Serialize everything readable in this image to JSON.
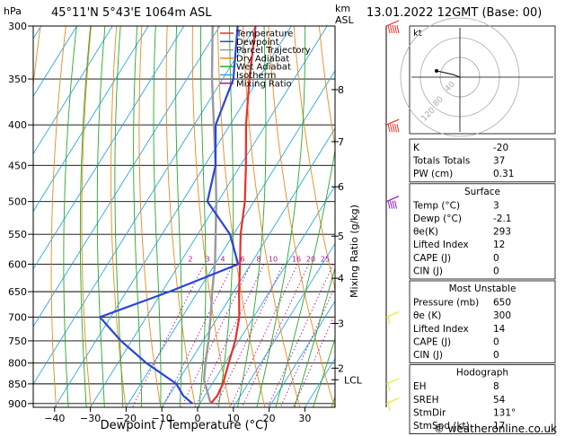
{
  "header": {
    "hpa_label": "hPa",
    "location": "45°11'N  5°43'E  1064m  ASL",
    "km_label": "km",
    "asl_label": "ASL",
    "datetime": "13.01.2022  12GMT  (Base: 00)"
  },
  "axes": {
    "xlabel": "Dewpoint / Temperature (°C)",
    "mixing_ratio_label": "Mixing Ratio (g/kg)",
    "credit": "© weatheronline.co.uk"
  },
  "legend": [
    {
      "label": "Temperature",
      "color": "#e8302a"
    },
    {
      "label": "Dewpoint",
      "color": "#2a45d8"
    },
    {
      "label": "Parcel Trajectory",
      "color": "#999999"
    },
    {
      "label": "Dry Adiabat",
      "color": "#e88a1c"
    },
    {
      "label": "Wet Adiabat",
      "color": "#28a828"
    },
    {
      "label": "Isotherm",
      "color": "#28a8e8"
    },
    {
      "label": "Mixing Ratio",
      "color": "#b0109a"
    }
  ],
  "colors": {
    "temperature": "#e8302a",
    "dewpoint": "#2a45d8",
    "parcel": "#999999",
    "dry_adiabat": "#e88a1c",
    "wet_adiabat": "#28a828",
    "isotherm": "#28a8e8",
    "mixing_ratio": "#b0109a",
    "wind": "#e8e820"
  },
  "chart_data": {
    "type": "skew-t",
    "pressure_levels": [
      300,
      350,
      400,
      450,
      500,
      550,
      600,
      650,
      700,
      750,
      800,
      850,
      900
    ],
    "pressure_labels": [
      "300",
      "350",
      "400",
      "450",
      "500",
      "550",
      "600",
      "650",
      "700",
      "750",
      "800",
      "850",
      "900"
    ],
    "temp_ticks": [
      -40,
      -30,
      -20,
      -10,
      0,
      10,
      20,
      30
    ],
    "temp_tick_labels": [
      "−40",
      "−30",
      "−20",
      "−10",
      "0",
      "10",
      "20",
      "30"
    ],
    "km_ticks": [
      {
        "p": 361,
        "label": "8"
      },
      {
        "p": 420,
        "label": "7"
      },
      {
        "p": 479,
        "label": "6"
      },
      {
        "p": 553,
        "label": "5"
      },
      {
        "p": 625,
        "label": "4"
      },
      {
        "p": 713,
        "label": "3"
      },
      {
        "p": 812,
        "label": "2"
      }
    ],
    "lcl": {
      "p": 840,
      "label": "LCL"
    },
    "mixing_ratio_values": [
      "2",
      "3",
      "4",
      "6",
      "8",
      "10",
      "16",
      "20",
      "25"
    ],
    "temperature": [
      {
        "p": 900,
        "t": 3
      },
      {
        "p": 880,
        "t": 3.5
      },
      {
        "p": 850,
        "t": 3
      },
      {
        "p": 800,
        "t": 1
      },
      {
        "p": 750,
        "t": -1
      },
      {
        "p": 700,
        "t": -4
      },
      {
        "p": 650,
        "t": -8.5
      },
      {
        "p": 600,
        "t": -13
      },
      {
        "p": 550,
        "t": -18
      },
      {
        "p": 500,
        "t": -22.5
      },
      {
        "p": 450,
        "t": -28.5
      },
      {
        "p": 400,
        "t": -35.5
      },
      {
        "p": 350,
        "t": -42.5
      },
      {
        "p": 300,
        "t": -50
      }
    ],
    "dewpoint": [
      {
        "p": 900,
        "t": -2.1
      },
      {
        "p": 880,
        "t": -6
      },
      {
        "p": 850,
        "t": -10
      },
      {
        "p": 800,
        "t": -22
      },
      {
        "p": 750,
        "t": -33
      },
      {
        "p": 700,
        "t": -43
      },
      {
        "p": 650,
        "t": -28
      },
      {
        "p": 600,
        "t": -13.5
      },
      {
        "p": 550,
        "t": -21
      },
      {
        "p": 500,
        "t": -33
      },
      {
        "p": 450,
        "t": -37
      },
      {
        "p": 400,
        "t": -44
      },
      {
        "p": 350,
        "t": -47
      },
      {
        "p": 300,
        "t": -55
      }
    ],
    "parcel": [
      {
        "p": 900,
        "t": 3
      },
      {
        "p": 840,
        "t": -3
      },
      {
        "p": 800,
        "t": -5.5
      },
      {
        "p": 750,
        "t": -8.5
      },
      {
        "p": 700,
        "t": -12
      },
      {
        "p": 650,
        "t": -16
      },
      {
        "p": 600,
        "t": -20
      },
      {
        "p": 550,
        "t": -25
      },
      {
        "p": 500,
        "t": -30.5
      },
      {
        "p": 450,
        "t": -37
      },
      {
        "p": 400,
        "t": -44.5
      },
      {
        "p": 350,
        "t": -53
      },
      {
        "p": 300,
        "t": -62
      }
    ],
    "wind_barbs": [
      {
        "p": 300,
        "dir": 300,
        "speed": 55
      },
      {
        "p": 400,
        "dir": 290,
        "speed": 50
      },
      {
        "p": 500,
        "dir": 280,
        "speed": 40
      },
      {
        "p": 700,
        "dir": 250,
        "speed": 10
      },
      {
        "p": 850,
        "dir": 220,
        "speed": 10
      },
      {
        "p": 900,
        "dir": 131,
        "speed": 5
      }
    ],
    "hodograph": {
      "unit_label": "kt",
      "ring_labels": [
        "40",
        "80",
        "120"
      ]
    }
  },
  "indices": {
    "top": [
      {
        "label": "K",
        "value": "-20"
      },
      {
        "label": "Totals Totals",
        "value": "37"
      },
      {
        "label": "PW (cm)",
        "value": "0.31"
      }
    ],
    "surface": {
      "title": "Surface",
      "rows": [
        {
          "label": "Temp (°C)",
          "value": "3"
        },
        {
          "label": "Dewp (°C)",
          "value": "-2.1"
        },
        {
          "label": "θe(K)",
          "value": "293"
        },
        {
          "label": "Lifted Index",
          "value": "12"
        },
        {
          "label": "CAPE (J)",
          "value": "0"
        },
        {
          "label": "CIN (J)",
          "value": "0"
        }
      ]
    },
    "most_unstable": {
      "title": "Most Unstable",
      "rows": [
        {
          "label": "Pressure (mb)",
          "value": "650"
        },
        {
          "label": "θe (K)",
          "value": "300"
        },
        {
          "label": "Lifted Index",
          "value": "14"
        },
        {
          "label": "CAPE (J)",
          "value": "0"
        },
        {
          "label": "CIN (J)",
          "value": "0"
        }
      ]
    },
    "hodograph": {
      "title": "Hodograph",
      "rows": [
        {
          "label": "EH",
          "value": "8"
        },
        {
          "label": "SREH",
          "value": "54"
        },
        {
          "label": "StmDir",
          "value": "131°"
        },
        {
          "label": "StmSpd (kt)",
          "value": "17"
        }
      ]
    }
  }
}
